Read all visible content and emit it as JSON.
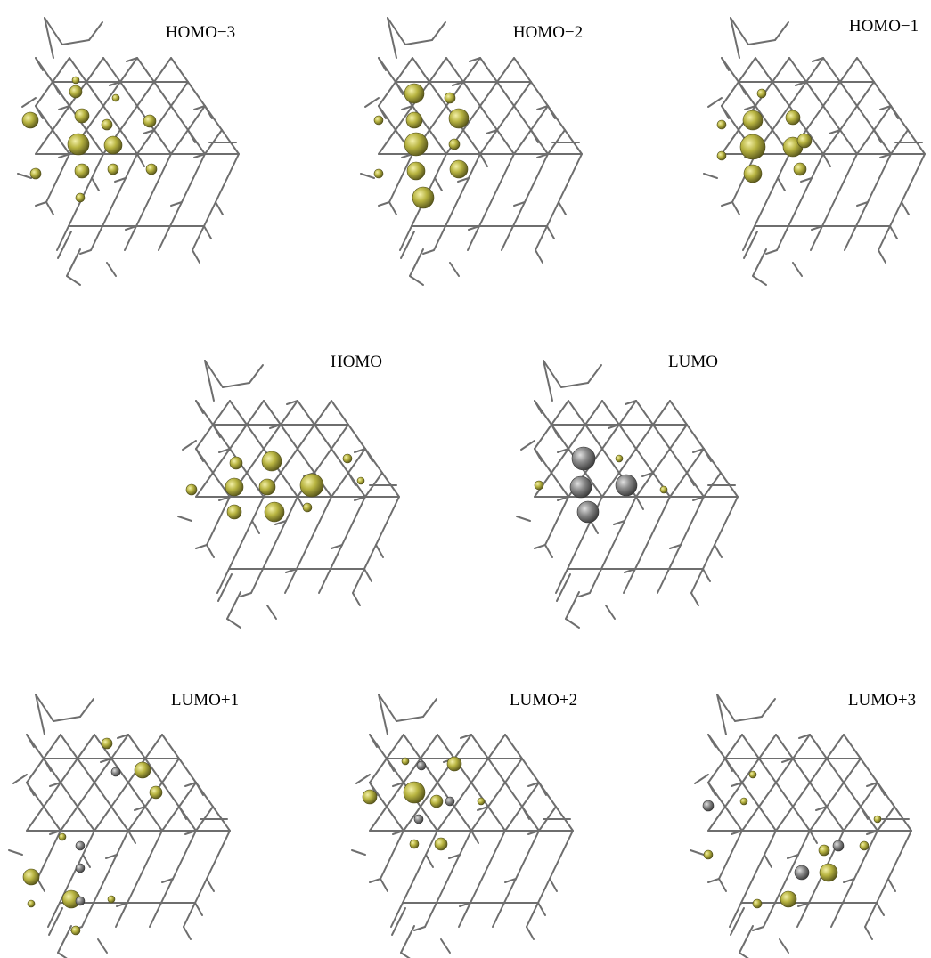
{
  "panels": [
    {
      "label": "HOMO−3"
    },
    {
      "label": "HOMO−2"
    },
    {
      "label": "HOMO−1"
    },
    {
      "label": "HOMO"
    },
    {
      "label": "LUMO"
    },
    {
      "label": "LUMO+1"
    },
    {
      "label": "LUMO+2"
    },
    {
      "label": "LUMO+3"
    }
  ]
}
